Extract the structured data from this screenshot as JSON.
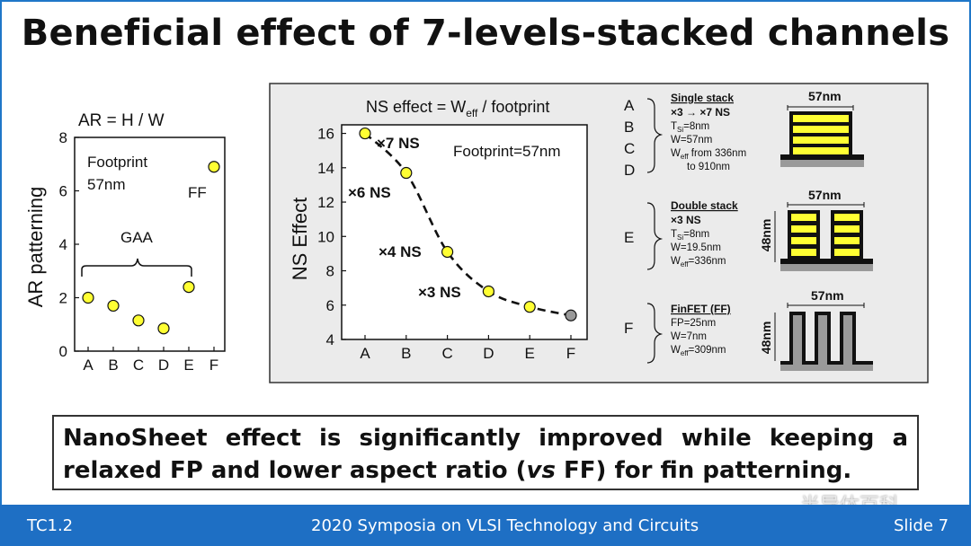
{
  "slide": {
    "title": "Beneficial effect of 7-levels-stacked channels",
    "conclusion_line1": "NanoSheet effect is significantly improved while keeping a",
    "conclusion_line2_a": "relaxed FP and lower aspect ratio (",
    "conclusion_line2_vs": "vs",
    "conclusion_line2_b": " FF) for fin patterning.",
    "footer_left": "TC1.2",
    "footer_center": "2020 Symposia on VLSI Technology and Circuits",
    "footer_right": "Slide 7",
    "watermark": "半导体百科"
  },
  "chart_data": [
    {
      "type": "scatter",
      "title": "AR = H / W",
      "xlabel": "",
      "ylabel": "AR patterning",
      "categories": [
        "A",
        "B",
        "C",
        "D",
        "E",
        "F"
      ],
      "values": [
        2.0,
        1.7,
        1.15,
        0.85,
        2.4,
        6.9
      ],
      "ylim": [
        0,
        8
      ],
      "yticks": [
        "0",
        "2",
        "4",
        "6",
        "8"
      ],
      "annotations": {
        "footprint_line1": "Footprint",
        "footprint_line2": "57nm",
        "gaa": "GAA",
        "ff": "FF"
      },
      "colors": {
        "marker": "#ffff33",
        "edge": "#111111"
      }
    },
    {
      "type": "line",
      "title": "NS effect = W",
      "title_sub": "eff",
      "title_rest": " / footprint",
      "xlabel": "",
      "ylabel": "NS Effect",
      "categories": [
        "A",
        "B",
        "C",
        "D",
        "E",
        "F"
      ],
      "values": [
        16.0,
        13.7,
        9.1,
        6.8,
        5.9,
        5.4
      ],
      "ylim": [
        4,
        16.5
      ],
      "yticks": [
        "4",
        "6",
        "8",
        "10",
        "12",
        "14",
        "16"
      ],
      "annotations": {
        "footprint": "Footprint=57nm",
        "ns7": "×7 NS",
        "ns6": "×6 NS",
        "ns4": "×4 NS",
        "ns3": "×3 NS"
      },
      "colors": {
        "marker": "#ffff33",
        "ff_marker": "#999999",
        "background": "#ebebeb"
      }
    }
  ],
  "legend": {
    "letters_1": [
      "A",
      "B",
      "C",
      "D"
    ],
    "single": {
      "title": "Single stack",
      "l1": "×3 → ×7 NS",
      "l2a": "T",
      "l2sub": "Si",
      "l2b": "=8nm",
      "l3": "W=57nm",
      "l4a": "W",
      "l4sub": "eff",
      "l4b": " from 336nm",
      "l5": "to 910nm",
      "dim": "57nm"
    },
    "letter_2": "E",
    "double": {
      "title": "Double stack",
      "l1": "×3 NS",
      "l2a": "T",
      "l2sub": "Si",
      "l2b": "=8nm",
      "l3": "W=19.5nm",
      "l4a": "W",
      "l4sub": "eff",
      "l4b": "=336nm",
      "dim": "57nm",
      "height": "48nm"
    },
    "letter_3": "F",
    "finfet": {
      "title": "FinFET (FF)",
      "l1": "FP=25nm",
      "l2": "W=7nm",
      "l3a": "W",
      "l3sub": "eff",
      "l3b": "=309nm",
      "dim": "57nm",
      "height": "48nm"
    }
  }
}
